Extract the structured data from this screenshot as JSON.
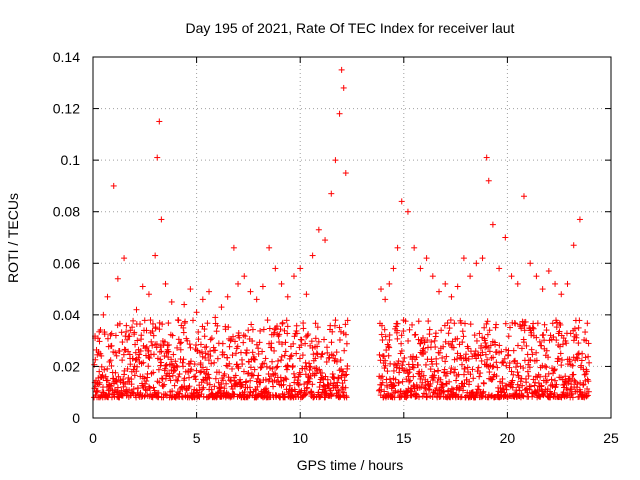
{
  "chart_data": {
    "type": "scatter",
    "title": "Day 195 of 2021, Rate Of TEC Index for receiver laut",
    "xlabel": "GPS time / hours",
    "ylabel": "ROTI / TECUs",
    "xlim": [
      0,
      25
    ],
    "ylim": [
      0,
      0.14
    ],
    "x_ticks": [
      0,
      5,
      10,
      15,
      20,
      25
    ],
    "y_ticks": [
      0,
      0.02,
      0.04,
      0.06,
      0.08,
      0.1,
      0.12,
      0.14
    ],
    "x_tick_labels": [
      "0",
      "5",
      "10",
      "15",
      "20",
      "25"
    ],
    "y_tick_labels": [
      "0",
      "0.02",
      "0.04",
      "0.06",
      "0.08",
      "0.1",
      "0.12",
      "0.14"
    ],
    "grid": true,
    "marker": "plus",
    "color": "#ff0000",
    "data_gap_hours": [
      12.3,
      13.8
    ],
    "series": [
      {
        "x": [
          0.1,
          0.3,
          0.5,
          0.7,
          0.9,
          1.0,
          1.2,
          1.5,
          1.8,
          2.1,
          2.4,
          2.7,
          3.0,
          3.1,
          3.2,
          3.3,
          3.5,
          3.8,
          4.1,
          4.4,
          4.7,
          5.0,
          5.3,
          5.6,
          5.9,
          6.2,
          6.5,
          6.8,
          7.0,
          7.3,
          7.6,
          7.9,
          8.2,
          8.5,
          8.8,
          9.1,
          9.4,
          9.7,
          10.0,
          10.3,
          10.6,
          10.9,
          11.2,
          11.5,
          11.7,
          11.9,
          12.0,
          12.1,
          12.2,
          13.9,
          14.1,
          14.3,
          14.5,
          14.7,
          14.9,
          15.2,
          15.5,
          15.8,
          16.1,
          16.4,
          16.7,
          17.0,
          17.3,
          17.6,
          17.9,
          18.2,
          18.5,
          18.8,
          19.0,
          19.1,
          19.3,
          19.6,
          19.9,
          20.2,
          20.5,
          20.8,
          21.1,
          21.4,
          21.7,
          22.0,
          22.3,
          22.6,
          22.9,
          23.2,
          23.5,
          23.8
        ],
        "y": [
          0.031,
          0.018,
          0.04,
          0.047,
          0.028,
          0.09,
          0.054,
          0.062,
          0.034,
          0.042,
          0.051,
          0.048,
          0.063,
          0.101,
          0.115,
          0.077,
          0.052,
          0.045,
          0.038,
          0.044,
          0.05,
          0.041,
          0.046,
          0.049,
          0.039,
          0.043,
          0.047,
          0.066,
          0.052,
          0.055,
          0.049,
          0.046,
          0.051,
          0.066,
          0.058,
          0.052,
          0.047,
          0.055,
          0.058,
          0.048,
          0.063,
          0.073,
          0.069,
          0.087,
          0.1,
          0.118,
          0.135,
          0.128,
          0.095,
          0.05,
          0.046,
          0.052,
          0.058,
          0.066,
          0.084,
          0.08,
          0.066,
          0.058,
          0.062,
          0.055,
          0.049,
          0.052,
          0.047,
          0.051,
          0.062,
          0.055,
          0.06,
          0.062,
          0.101,
          0.092,
          0.075,
          0.058,
          0.07,
          0.055,
          0.052,
          0.086,
          0.06,
          0.055,
          0.05,
          0.057,
          0.052,
          0.048,
          0.052,
          0.067,
          0.077,
          0.03
        ]
      }
    ]
  }
}
